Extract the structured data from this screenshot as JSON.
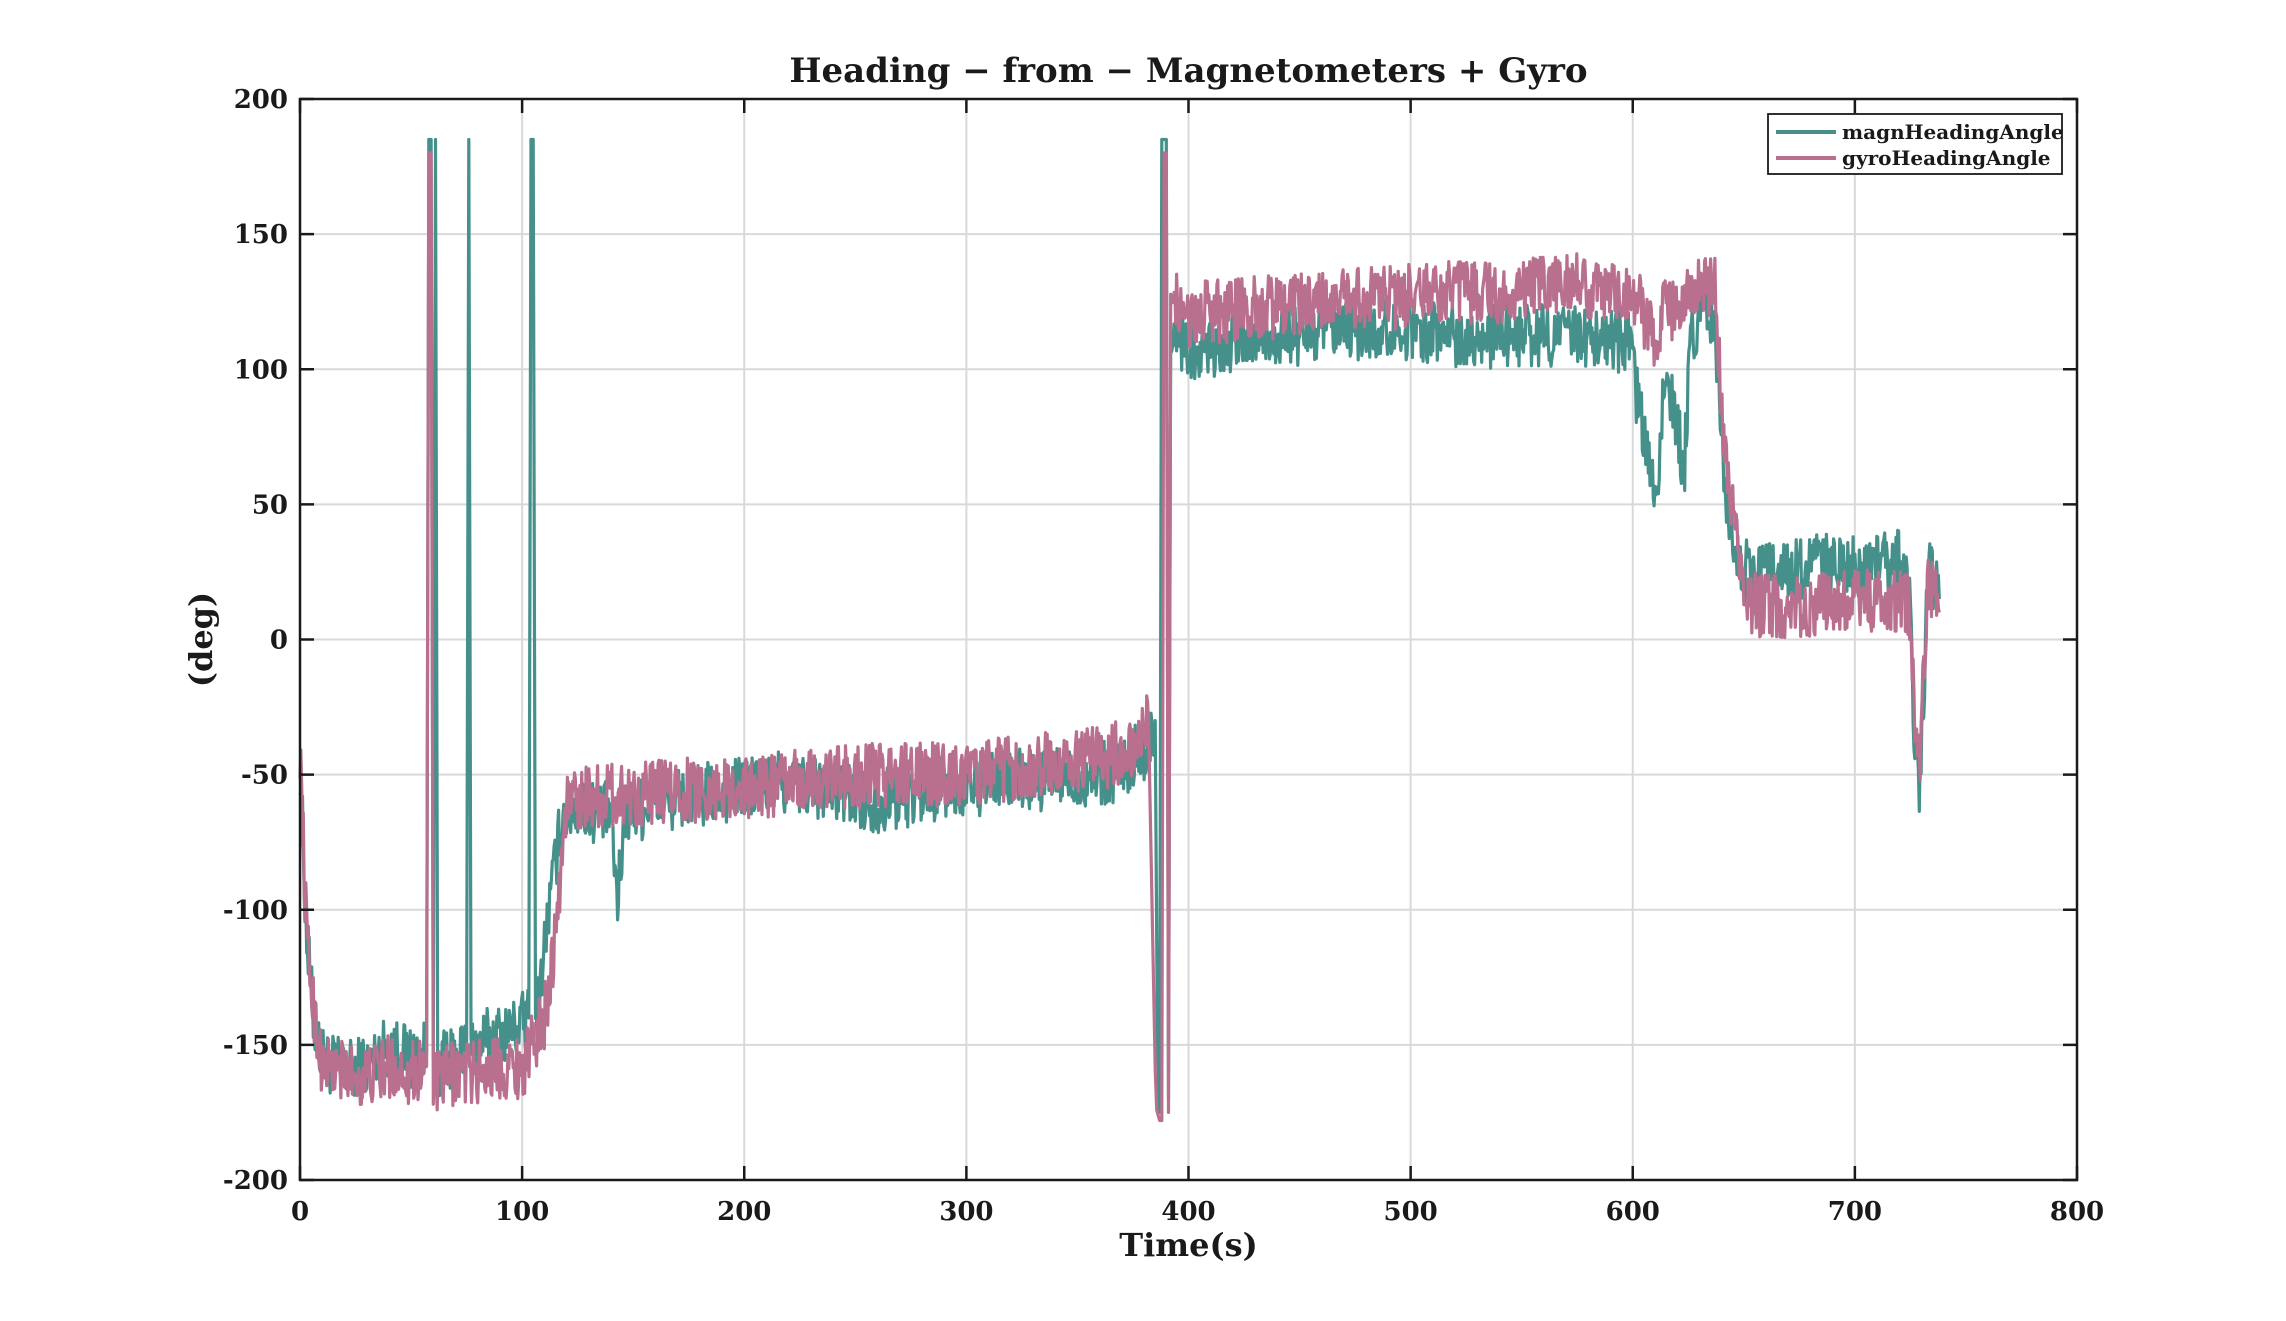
{
  "chart_data": {
    "type": "line",
    "title": "Heading − from − Magnetometers + Gyro",
    "xlabel": "Time(s)",
    "ylabel": "(deg)",
    "xlim": [
      0,
      800
    ],
    "ylim": [
      -200,
      200
    ],
    "xticks": [
      0,
      100,
      200,
      300,
      400,
      500,
      600,
      700,
      800
    ],
    "yticks": [
      200,
      150,
      100,
      50,
      0,
      -50,
      -100,
      -150,
      -200
    ],
    "grid": true,
    "legend_position": "top-right",
    "series": [
      {
        "name": "magnHeadingAngle",
        "color": "#45908a",
        "x": [
          0,
          3,
          6,
          10,
          20,
          30,
          40,
          50,
          57,
          58,
          59,
          60,
          61,
          62,
          70,
          75,
          76,
          77,
          78,
          85,
          95,
          103,
          104,
          105,
          106,
          107,
          112,
          118,
          125,
          140,
          143,
          146,
          160,
          180,
          200,
          215,
          230,
          250,
          260,
          270,
          290,
          310,
          330,
          350,
          370,
          378,
          382,
          385,
          386,
          387,
          388,
          389,
          390,
          391,
          392,
          395,
          400,
          420,
          440,
          460,
          480,
          500,
          520,
          540,
          560,
          580,
          598,
          602,
          607,
          610,
          615,
          620,
          623,
          626,
          630,
          637,
          641,
          645,
          650,
          660,
          680,
          700,
          715,
          722,
          725,
          727,
          729,
          731,
          733,
          736,
          738
        ],
        "y": [
          -45,
          -110,
          -140,
          -155,
          -160,
          -158,
          -150,
          -155,
          -153,
          185,
          185,
          -155,
          185,
          -157,
          -156,
          -150,
          185,
          -152,
          -150,
          -148,
          -145,
          -140,
          185,
          185,
          -138,
          -135,
          -100,
          -65,
          -62,
          -65,
          -98,
          -65,
          -60,
          -58,
          -55,
          -53,
          -54,
          -58,
          -60,
          -58,
          -55,
          -53,
          -52,
          -51,
          -48,
          -42,
          -38,
          -30,
          -150,
          -175,
          185,
          185,
          185,
          -170,
          110,
          112,
          108,
          110,
          112,
          113,
          114,
          115,
          113,
          112,
          113,
          112,
          110,
          90,
          65,
          50,
          100,
          80,
          60,
          110,
          120,
          118,
          60,
          40,
          25,
          25,
          27,
          27,
          28,
          30,
          10,
          -40,
          -55,
          -20,
          28,
          20,
          15
        ]
      },
      {
        "name": "gyroHeadingAngle",
        "color": "#b8708e",
        "x": [
          0,
          3,
          6,
          10,
          20,
          30,
          40,
          50,
          57,
          58,
          59,
          60,
          61,
          70,
          80,
          90,
          100,
          105,
          110,
          115,
          120,
          130,
          150,
          170,
          200,
          230,
          260,
          290,
          320,
          350,
          370,
          378,
          382,
          385,
          386,
          387,
          388,
          389,
          390,
          391,
          392,
          395,
          400,
          420,
          440,
          460,
          480,
          500,
          520,
          540,
          560,
          570,
          580,
          600,
          610,
          615,
          620,
          625,
          630,
          637,
          641,
          645,
          650,
          660,
          680,
          700,
          715,
          722,
          725,
          727,
          729,
          731,
          733,
          736,
          738
        ],
        "y": [
          -40,
          -110,
          -135,
          -158,
          -160,
          -162,
          -158,
          -160,
          -158,
          180,
          180,
          -162,
          -165,
          -160,
          -160,
          -158,
          -158,
          -150,
          -140,
          -110,
          -60,
          -58,
          -57,
          -56,
          -55,
          -52,
          -50,
          -50,
          -48,
          -45,
          -42,
          -38,
          -30,
          -150,
          -175,
          -178,
          -178,
          180,
          180,
          -175,
          125,
          123,
          120,
          122,
          123,
          124,
          126,
          127,
          128,
          127,
          130,
          135,
          130,
          130,
          110,
          125,
          120,
          125,
          130,
          132,
          70,
          45,
          15,
          12,
          12,
          14,
          15,
          15,
          10,
          -30,
          -50,
          -10,
          20,
          15,
          10
        ]
      }
    ]
  }
}
